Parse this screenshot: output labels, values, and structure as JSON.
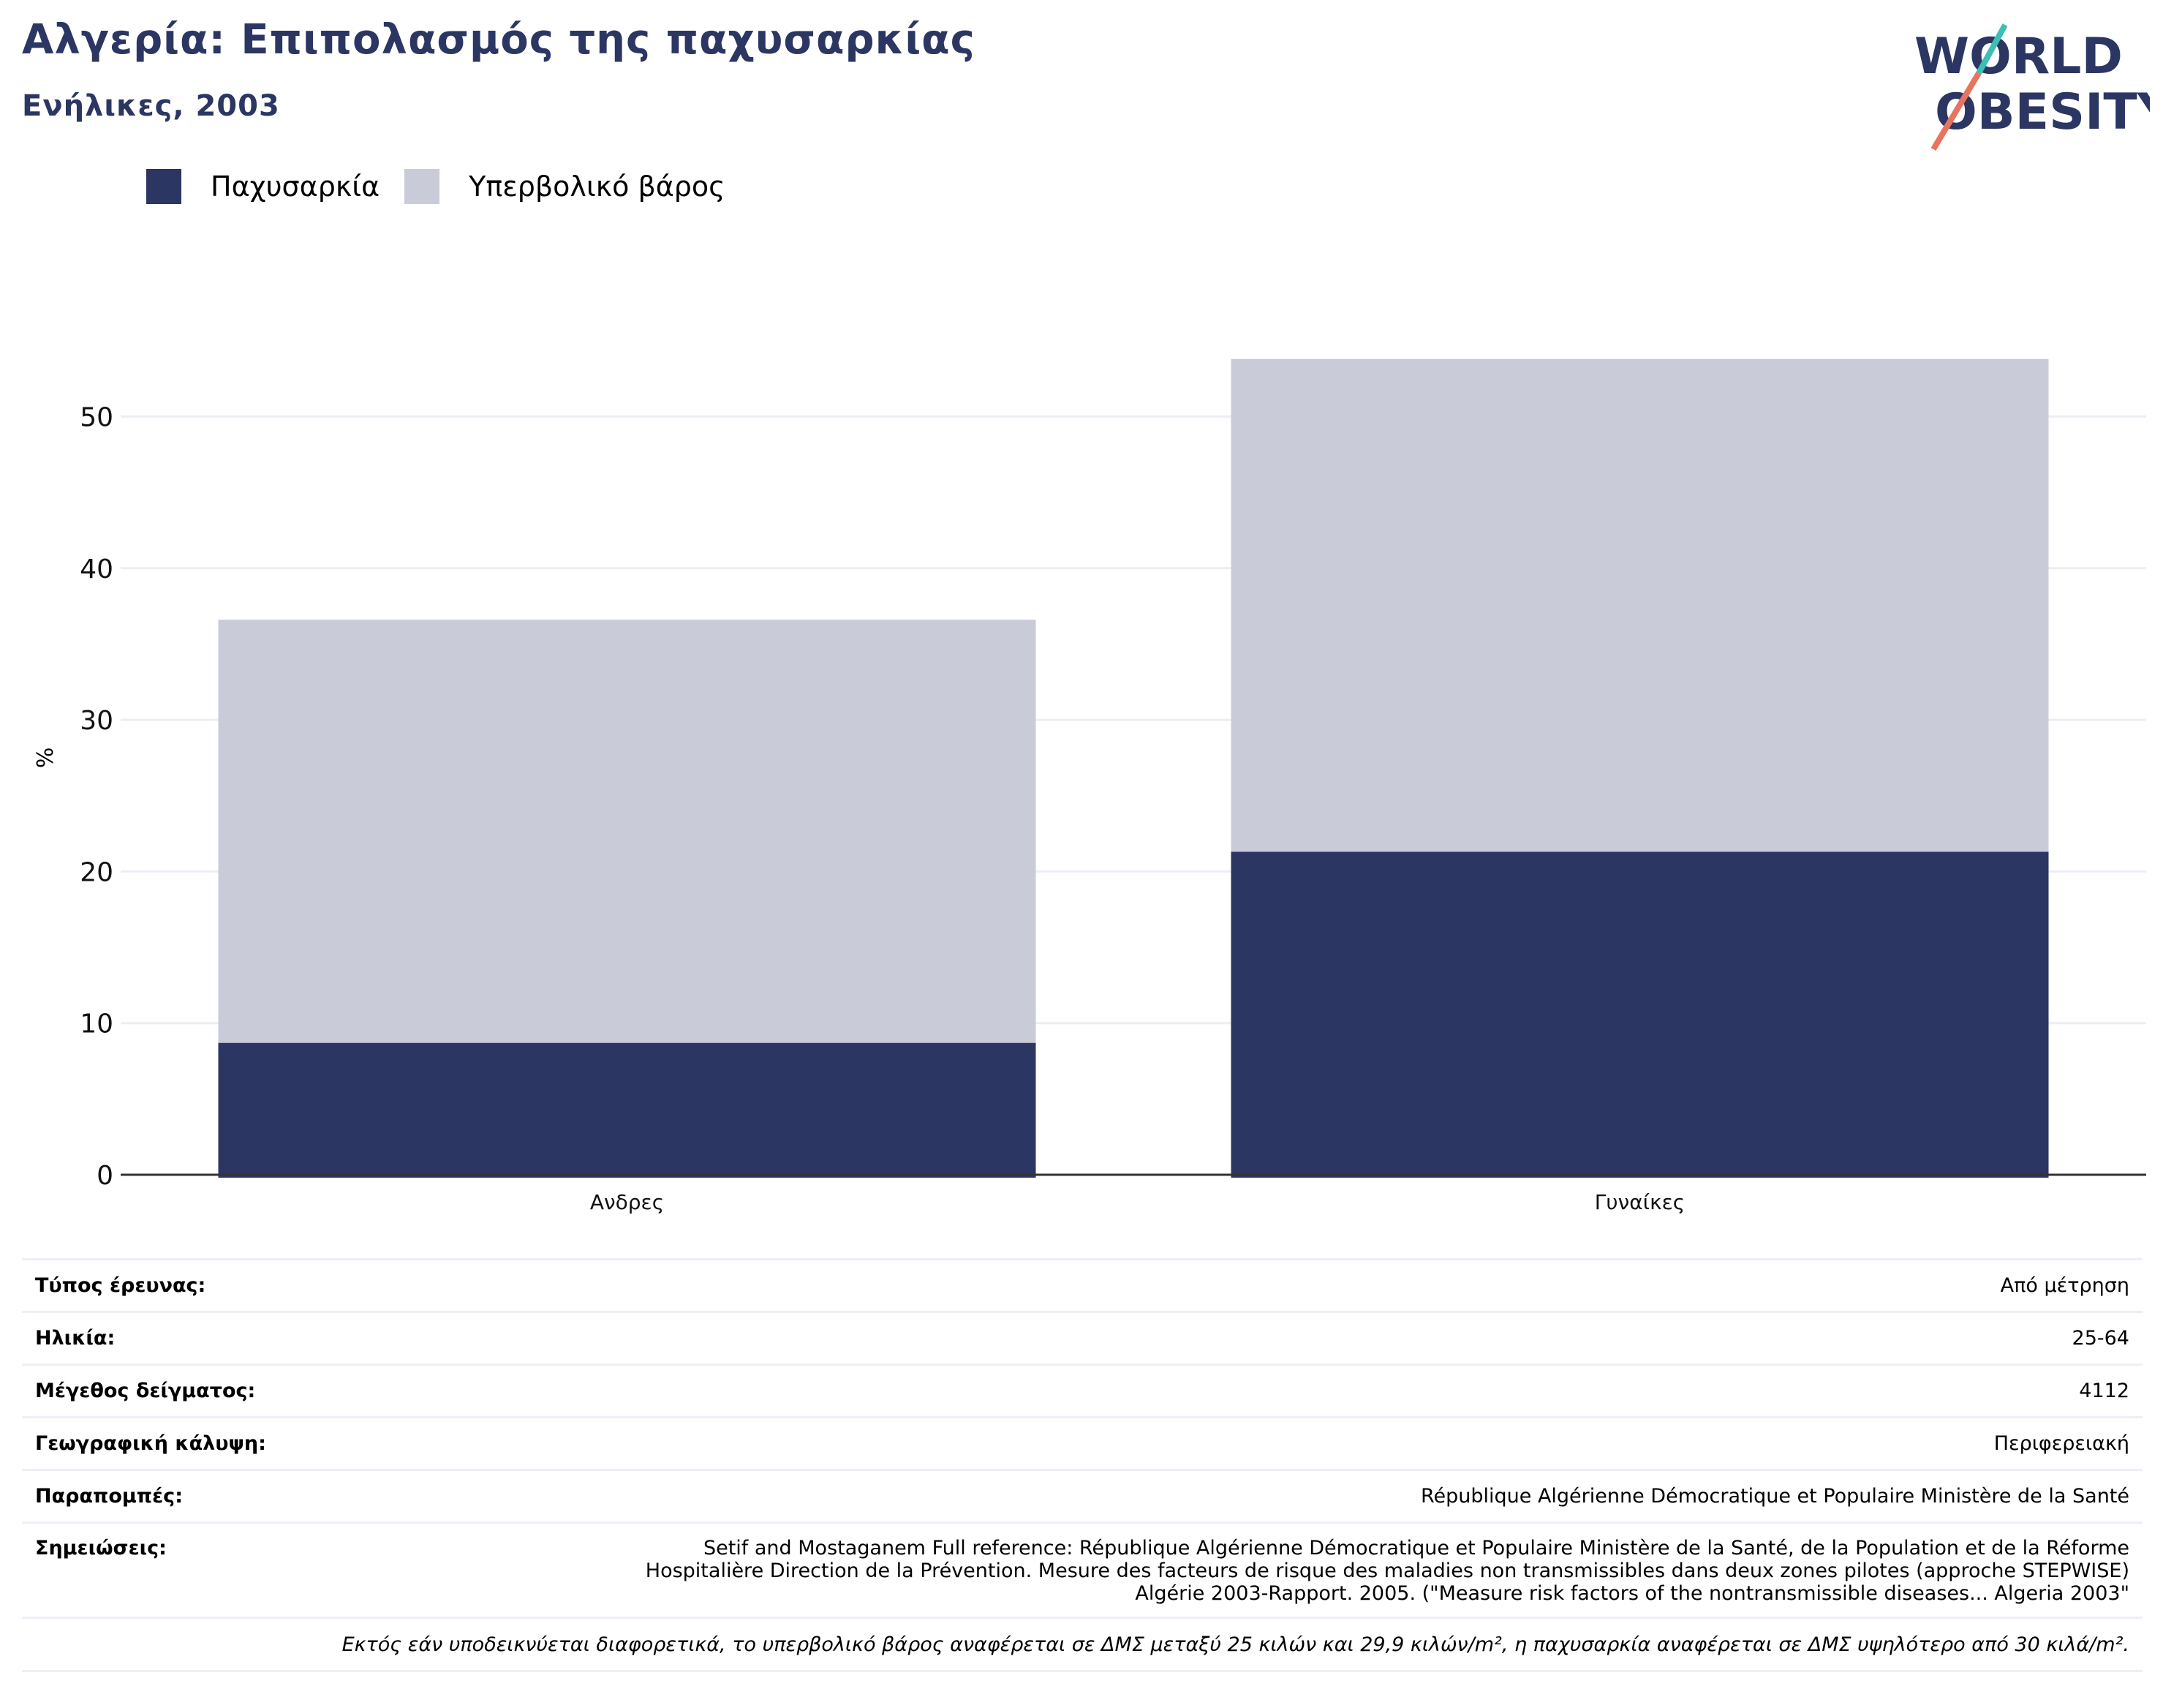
{
  "header": {
    "title": "Αλγερία: Επιπολασμός της παχυσαρκίας",
    "subtitle": "Ενήλικες, 2003"
  },
  "logo": {
    "line1": "WORLD",
    "line2": "OBESITY",
    "icon": "world-obesity-logo"
  },
  "colors": {
    "obesity": "#2b3663",
    "overweight": "#c9ccd8",
    "text_accent": "#2b3663",
    "logo_teal": "#3dbfb5",
    "logo_coral": "#e8735f"
  },
  "legend": {
    "items": [
      {
        "label": "Παχυσαρκία"
      },
      {
        "label": "Υπερβολικό βάρος"
      }
    ]
  },
  "chart_data": {
    "type": "bar",
    "stacked": true,
    "categories": [
      "Ανδρες",
      "Γυναίκες"
    ],
    "series": [
      {
        "name": "Παχυσαρκία",
        "values": [
          8.7,
          21.3
        ]
      },
      {
        "name": "Υπερβολικό βάρος",
        "values": [
          27.9,
          32.5
        ]
      }
    ],
    "ylabel": "%",
    "ylim": [
      0,
      55
    ],
    "yticks": [
      0,
      10,
      20,
      30,
      40,
      50
    ],
    "grid": true,
    "legend_position": "top-left"
  },
  "info": {
    "rows": [
      {
        "key": "Τύπος έρευνας:",
        "value": "Από μέτρηση"
      },
      {
        "key": "Ηλικία:",
        "value": "25-64"
      },
      {
        "key": "Μέγεθος δείγματος:",
        "value": "4112"
      },
      {
        "key": "Γεωγραφική κάλυψη:",
        "value": "Περιφερειακή"
      },
      {
        "key": "Παραπομπές:",
        "value": "République Algérienne Démocratique et Populaire Ministère de la Santé"
      }
    ],
    "notes_key": "Σημειώσεις:",
    "notes_value": "Setif and Mostaganem Full reference: République Algérienne Démocratique et Populaire Ministère de la Santé, de la Population et de la Réforme Hospitalière Direction de la Prévention. Mesure des facteurs de risque des maladies non transmissibles dans deux zones pilotes (approche STEPWISE) Algérie 2003-Rapport. 2005. (\"Measure risk factors of the nontransmissible diseases... Algeria 2003\"",
    "footnote": "Εκτός εάν υποδεικνύεται διαφορετικά, το υπερβολικό βάρος αναφέρεται σε ΔΜΣ μεταξύ 25 κιλών και 29,9 κιλών/m², η παχυσαρκία αναφέρεται σε ΔΜΣ υψηλότερο από 30 κιλά/m²."
  }
}
